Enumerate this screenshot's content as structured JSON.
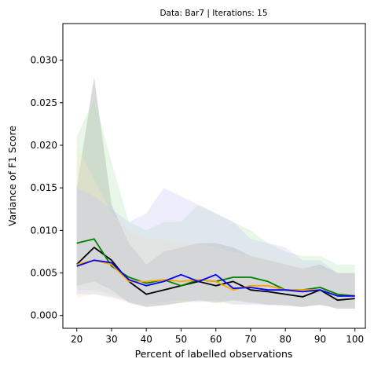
{
  "chart_data": {
    "type": "line",
    "title": "Data: Bar7 | Iterations: 15",
    "xlabel": "Percent of labelled observations",
    "ylabel": "Variance of F1 Score",
    "xlim": [
      16,
      103
    ],
    "ylim": [
      -0.0015,
      0.0343
    ],
    "xticks": [
      20,
      30,
      40,
      50,
      60,
      70,
      80,
      90,
      100
    ],
    "yticks": [
      0.0,
      0.005,
      0.01,
      0.015,
      0.02,
      0.025,
      0.03
    ],
    "ytick_labels": [
      "0.000",
      "0.005",
      "0.010",
      "0.015",
      "0.020",
      "0.025",
      "0.030"
    ],
    "grid": false,
    "legend": "none",
    "x": [
      20,
      25,
      30,
      35,
      40,
      45,
      50,
      55,
      60,
      65,
      70,
      75,
      80,
      85,
      90,
      95,
      100
    ],
    "series": [
      {
        "color": "#000000",
        "band_color": "#808080",
        "values": [
          0.006,
          0.008,
          0.0065,
          0.004,
          0.0025,
          0.003,
          0.0035,
          0.004,
          0.0035,
          0.004,
          0.003,
          0.0028,
          0.0025,
          0.0022,
          0.003,
          0.0018,
          0.002
        ],
        "lower": [
          0.0035,
          0.004,
          0.003,
          0.0015,
          0.001,
          0.0012,
          0.0015,
          0.0018,
          0.0015,
          0.0018,
          0.0015,
          0.0013,
          0.0012,
          0.001,
          0.0013,
          0.0008,
          0.0008
        ],
        "upper": [
          0.015,
          0.028,
          0.013,
          0.0085,
          0.006,
          0.0075,
          0.008,
          0.0085,
          0.0085,
          0.008,
          0.007,
          0.0065,
          0.006,
          0.0055,
          0.006,
          0.005,
          0.005
        ]
      },
      {
        "color": "#008000",
        "band_color": "#b5e6b5",
        "values": [
          0.0085,
          0.009,
          0.0058,
          0.0045,
          0.0038,
          0.0042,
          0.0035,
          0.0042,
          0.004,
          0.0045,
          0.0045,
          0.004,
          0.003,
          0.003,
          0.0033,
          0.0025,
          0.0023
        ],
        "lower": [
          0.003,
          0.003,
          0.0025,
          0.0018,
          0.0015,
          0.0018,
          0.0015,
          0.0018,
          0.0016,
          0.0018,
          0.0018,
          0.0016,
          0.0012,
          0.0012,
          0.0013,
          0.001,
          0.001
        ],
        "upper": [
          0.021,
          0.0255,
          0.018,
          0.011,
          0.01,
          0.011,
          0.011,
          0.013,
          0.012,
          0.011,
          0.01,
          0.0085,
          0.0075,
          0.007,
          0.007,
          0.006,
          0.006
        ]
      },
      {
        "color": "#ffa500",
        "band_color": "#fbe7bf",
        "values": [
          0.006,
          0.0065,
          0.006,
          0.004,
          0.004,
          0.0042,
          0.004,
          0.0042,
          0.004,
          0.003,
          0.0035,
          0.0035,
          0.003,
          0.003,
          0.003,
          0.0023,
          0.0023
        ],
        "lower": [
          0.002,
          0.0025,
          0.002,
          0.0015,
          0.0015,
          0.0018,
          0.0015,
          0.0016,
          0.0015,
          0.0013,
          0.0014,
          0.0014,
          0.0012,
          0.0012,
          0.0012,
          0.001,
          0.001
        ],
        "upper": [
          0.02,
          0.016,
          0.012,
          0.01,
          0.009,
          0.009,
          0.0085,
          0.0085,
          0.008,
          0.0075,
          0.007,
          0.0065,
          0.006,
          0.0058,
          0.0055,
          0.005,
          0.005
        ]
      },
      {
        "color": "#0000ff",
        "band_color": "#c4c4f5",
        "values": [
          0.0058,
          0.0065,
          0.0062,
          0.0042,
          0.0035,
          0.004,
          0.0048,
          0.004,
          0.0048,
          0.0032,
          0.0033,
          0.003,
          0.003,
          0.0028,
          0.003,
          0.0023,
          0.0023
        ],
        "lower": [
          0.0025,
          0.0025,
          0.0022,
          0.0016,
          0.0014,
          0.0016,
          0.0018,
          0.0016,
          0.0018,
          0.0013,
          0.0013,
          0.0012,
          0.0012,
          0.0011,
          0.0012,
          0.001,
          0.001
        ],
        "upper": [
          0.015,
          0.014,
          0.0125,
          0.011,
          0.012,
          0.015,
          0.014,
          0.013,
          0.012,
          0.011,
          0.009,
          0.0085,
          0.008,
          0.0065,
          0.0065,
          0.005,
          0.005
        ]
      }
    ]
  }
}
